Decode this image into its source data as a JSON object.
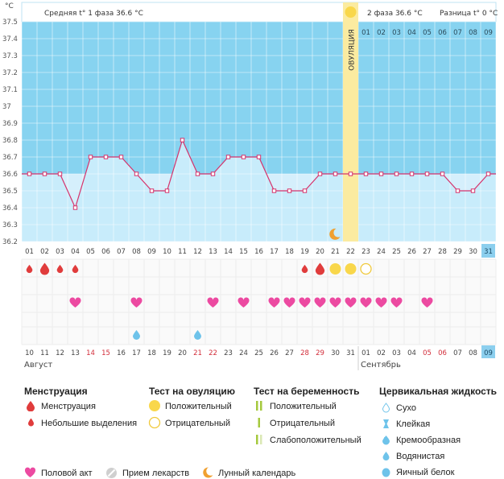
{
  "chart_data": {
    "type": "line",
    "title": "",
    "ylabel": "°C",
    "ylim": [
      36.2,
      37.5
    ],
    "yticks": [
      "37.5",
      "37.4",
      "37.3",
      "37.2",
      "37.1",
      "37",
      "36.9",
      "36.8",
      "36.7",
      "36.6",
      "36.5",
      "36.4",
      "36.3",
      "36.2"
    ],
    "phase1_label": "Средняя t° 1 фаза 36.6 °C",
    "phase2_label": "2 фаза 36.6 °C",
    "diff_label": "Разница t° 0 °C",
    "ovulation_label": "ОВУЛЯЦИЯ",
    "ovulation_day_index": 21,
    "phase2_cycle_days": [
      "01",
      "02",
      "03",
      "04",
      "05",
      "06",
      "07",
      "08",
      "09"
    ],
    "cycle_days": [
      "01",
      "02",
      "03",
      "04",
      "05",
      "06",
      "07",
      "08",
      "09",
      "10",
      "11",
      "12",
      "13",
      "14",
      "15",
      "16",
      "17",
      "18",
      "19",
      "20",
      "21",
      "22",
      "23",
      "24",
      "25",
      "26",
      "27",
      "28",
      "29",
      "30",
      "31"
    ],
    "dates": [
      "10",
      "11",
      "12",
      "13",
      "14",
      "15",
      "16",
      "17",
      "18",
      "19",
      "20",
      "21",
      "22",
      "23",
      "24",
      "25",
      "26",
      "27",
      "28",
      "29",
      "30",
      "31",
      "01",
      "02",
      "03",
      "04",
      "05",
      "06",
      "07",
      "08",
      "09"
    ],
    "red_date_indices": [
      4,
      5,
      11,
      12,
      18,
      19,
      26,
      27
    ],
    "highlight_index": 30,
    "month_labels": [
      "Август",
      "Сентябрь"
    ],
    "series": [
      {
        "name": "Температура",
        "values": [
          36.6,
          36.6,
          36.6,
          36.4,
          36.7,
          36.7,
          36.7,
          36.6,
          36.5,
          36.5,
          36.8,
          36.6,
          36.6,
          36.7,
          36.7,
          36.7,
          36.5,
          36.5,
          36.5,
          36.6,
          36.6,
          36.6,
          36.6,
          36.6,
          36.6,
          36.6,
          36.6,
          36.6,
          36.5,
          36.5,
          36.6
        ]
      }
    ],
    "moon_day_index": 20,
    "menstruation": {
      "0": "small",
      "1": "big",
      "2": "small",
      "3": "small",
      "18": "small",
      "19": "big"
    },
    "ovulation_test": {
      "20": "positive",
      "21": "positive",
      "22": "negative"
    },
    "intercourse_days": [
      3,
      7,
      12,
      14,
      16,
      17,
      18,
      19,
      20,
      21,
      22,
      23,
      24,
      26
    ],
    "fluid_days": {
      "7": "creamy",
      "11": "watery"
    }
  },
  "legend": {
    "menstruation": {
      "title": "Менструация",
      "items": [
        "Менструация",
        "Небольшие выделения"
      ]
    },
    "ovulation_test": {
      "title": "Тест на овуляцию",
      "items": [
        "Положительный",
        "Отрицательный"
      ]
    },
    "pregnancy_test": {
      "title": "Тест на беременность",
      "items": [
        "Положительный",
        "Отрицательный",
        "Слабоположительный"
      ]
    },
    "cervical_fluid": {
      "title": "Цервикальная жидкость",
      "items": [
        "Сухо",
        "Клейкая",
        "Кремообразная",
        "Водянистая",
        "Яичный белок"
      ]
    },
    "bottom": [
      "Половой акт",
      "Прием лекарств",
      "Лунный календарь"
    ]
  },
  "colors": {
    "high_zone": "#87d3f0",
    "low_zone": "#d5effc",
    "fill": "#c8ecfb",
    "line": "#d6336c",
    "ovulation": "#fbeba0",
    "sun": "#f9d74b",
    "heart": "#ec4aa1",
    "drop": "#e03c3c",
    "accent": "#6ec3ea"
  }
}
